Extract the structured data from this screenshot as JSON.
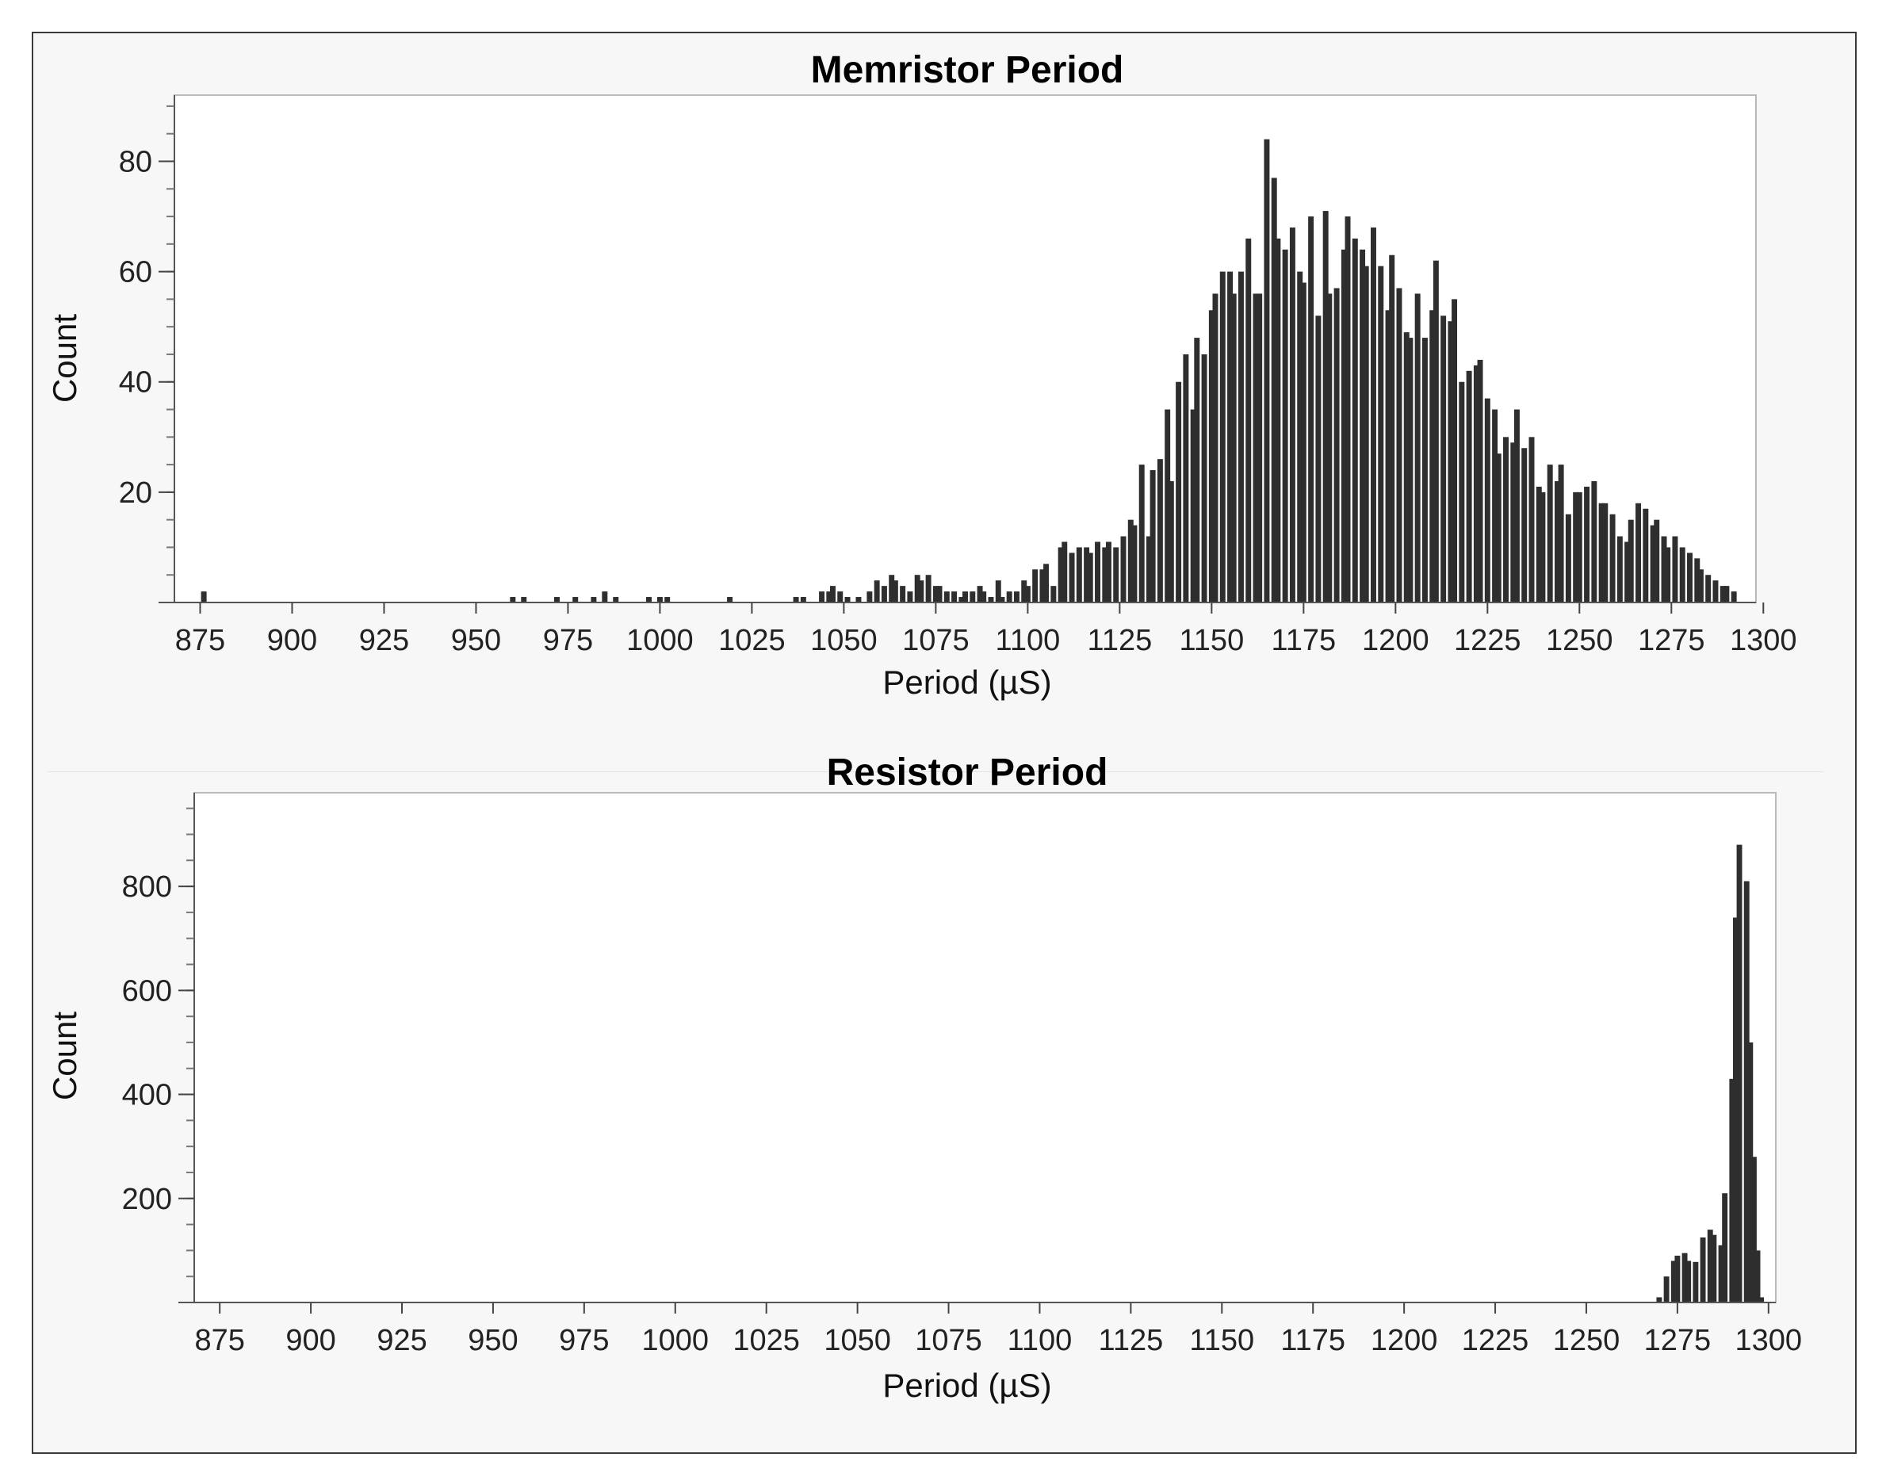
{
  "chart_data": [
    {
      "type": "bar",
      "title": "Memristor Period",
      "xlabel": "Period (µS)",
      "ylabel": "Count",
      "xlim": [
        868,
        1298
      ],
      "ylim": [
        0,
        92
      ],
      "xticks": [
        875,
        900,
        925,
        950,
        975,
        1000,
        1025,
        1050,
        1075,
        1100,
        1125,
        1150,
        1175,
        1200,
        1225,
        1250,
        1275,
        1300
      ],
      "yticks": [
        20,
        40,
        60,
        80
      ],
      "y_minor_step": 5,
      "bin_width": 1.5,
      "grid": false,
      "legend": "none",
      "bar_color": "#2e2e2e",
      "bins": [
        [
          876,
          2
        ],
        [
          960,
          1
        ],
        [
          963,
          1
        ],
        [
          972,
          1
        ],
        [
          977,
          1
        ],
        [
          982,
          1
        ],
        [
          985,
          2
        ],
        [
          988,
          1
        ],
        [
          997,
          1
        ],
        [
          1000,
          1
        ],
        [
          1002,
          1
        ],
        [
          1019,
          1
        ],
        [
          1037,
          1
        ],
        [
          1039,
          1
        ],
        [
          1044,
          2
        ],
        [
          1046,
          2
        ],
        [
          1047,
          3
        ],
        [
          1049,
          2
        ],
        [
          1051,
          1
        ],
        [
          1054,
          1
        ],
        [
          1057,
          2
        ],
        [
          1059,
          4
        ],
        [
          1061,
          3
        ],
        [
          1063,
          5
        ],
        [
          1064,
          4
        ],
        [
          1066,
          3
        ],
        [
          1068,
          2
        ],
        [
          1070,
          5
        ],
        [
          1071,
          4
        ],
        [
          1073,
          5
        ],
        [
          1075,
          3
        ],
        [
          1076,
          3
        ],
        [
          1078,
          2
        ],
        [
          1080,
          2
        ],
        [
          1082,
          1
        ],
        [
          1083,
          2
        ],
        [
          1085,
          2
        ],
        [
          1087,
          3
        ],
        [
          1088,
          2
        ],
        [
          1090,
          1
        ],
        [
          1092,
          4
        ],
        [
          1093,
          1
        ],
        [
          1095,
          2
        ],
        [
          1097,
          2
        ],
        [
          1099,
          4
        ],
        [
          1100,
          3
        ],
        [
          1102,
          6
        ],
        [
          1104,
          6
        ],
        [
          1105,
          7
        ],
        [
          1107,
          3
        ],
        [
          1109,
          10
        ],
        [
          1110,
          11
        ],
        [
          1112,
          9
        ],
        [
          1114,
          10
        ],
        [
          1116,
          10
        ],
        [
          1117,
          9
        ],
        [
          1119,
          11
        ],
        [
          1121,
          10
        ],
        [
          1122,
          11
        ],
        [
          1124,
          10
        ],
        [
          1126,
          12
        ],
        [
          1128,
          15
        ],
        [
          1129,
          14
        ],
        [
          1131,
          25
        ],
        [
          1133,
          12
        ],
        [
          1134,
          24
        ],
        [
          1136,
          26
        ],
        [
          1138,
          35
        ],
        [
          1139,
          22
        ],
        [
          1141,
          40
        ],
        [
          1143,
          45
        ],
        [
          1145,
          35
        ],
        [
          1146,
          48
        ],
        [
          1148,
          45
        ],
        [
          1150,
          53
        ],
        [
          1151,
          56
        ],
        [
          1153,
          60
        ],
        [
          1155,
          60
        ],
        [
          1156,
          56
        ],
        [
          1158,
          60
        ],
        [
          1160,
          66
        ],
        [
          1162,
          56
        ],
        [
          1163,
          56
        ],
        [
          1165,
          84
        ],
        [
          1167,
          77
        ],
        [
          1168,
          66
        ],
        [
          1170,
          64
        ],
        [
          1172,
          68
        ],
        [
          1174,
          60
        ],
        [
          1175,
          58
        ],
        [
          1177,
          70
        ],
        [
          1179,
          52
        ],
        [
          1181,
          71
        ],
        [
          1182,
          56
        ],
        [
          1184,
          57
        ],
        [
          1186,
          64
        ],
        [
          1187,
          70
        ],
        [
          1189,
          66
        ],
        [
          1191,
          64
        ],
        [
          1192,
          61
        ],
        [
          1194,
          68
        ],
        [
          1196,
          61
        ],
        [
          1198,
          53
        ],
        [
          1199,
          63
        ],
        [
          1201,
          57
        ],
        [
          1203,
          49
        ],
        [
          1204,
          48
        ],
        [
          1206,
          56
        ],
        [
          1208,
          48
        ],
        [
          1210,
          53
        ],
        [
          1211,
          62
        ],
        [
          1213,
          52
        ],
        [
          1215,
          51
        ],
        [
          1216,
          55
        ],
        [
          1218,
          40
        ],
        [
          1220,
          42
        ],
        [
          1222,
          43
        ],
        [
          1223,
          44
        ],
        [
          1225,
          37
        ],
        [
          1227,
          35
        ],
        [
          1228,
          27
        ],
        [
          1230,
          30
        ],
        [
          1232,
          29
        ],
        [
          1233,
          35
        ],
        [
          1235,
          28
        ],
        [
          1237,
          30
        ],
        [
          1239,
          21
        ],
        [
          1240,
          20
        ],
        [
          1242,
          25
        ],
        [
          1244,
          22
        ],
        [
          1245,
          25
        ],
        [
          1247,
          16
        ],
        [
          1249,
          20
        ],
        [
          1250,
          20
        ],
        [
          1252,
          21
        ],
        [
          1254,
          22
        ],
        [
          1256,
          18
        ],
        [
          1257,
          18
        ],
        [
          1259,
          16
        ],
        [
          1261,
          12
        ],
        [
          1263,
          11
        ],
        [
          1264,
          15
        ],
        [
          1266,
          18
        ],
        [
          1268,
          17
        ],
        [
          1270,
          14
        ],
        [
          1271,
          15
        ],
        [
          1273,
          12
        ],
        [
          1274,
          10
        ],
        [
          1276,
          12
        ],
        [
          1278,
          10
        ],
        [
          1280,
          9
        ],
        [
          1282,
          8
        ],
        [
          1283,
          6
        ],
        [
          1285,
          5
        ],
        [
          1287,
          4
        ],
        [
          1289,
          3
        ],
        [
          1290,
          3
        ],
        [
          1292,
          2
        ]
      ]
    },
    {
      "type": "bar",
      "title": "Resistor Period",
      "xlabel": "Period (µS)",
      "ylabel": "Count",
      "xlim": [
        868,
        1302
      ],
      "ylim": [
        0,
        980
      ],
      "xticks": [
        875,
        900,
        925,
        950,
        975,
        1000,
        1025,
        1050,
        1075,
        1100,
        1125,
        1150,
        1175,
        1200,
        1225,
        1250,
        1275,
        1300
      ],
      "yticks": [
        200,
        400,
        600,
        800
      ],
      "y_minor_step": 50,
      "bin_width": 1.5,
      "grid": false,
      "legend": "none",
      "bar_color": "#2e2e2e",
      "bins": [
        [
          1270,
          10
        ],
        [
          1272,
          50
        ],
        [
          1274,
          80
        ],
        [
          1275,
          90
        ],
        [
          1277,
          95
        ],
        [
          1278,
          80
        ],
        [
          1280,
          78
        ],
        [
          1282,
          125
        ],
        [
          1284,
          140
        ],
        [
          1285,
          130
        ],
        [
          1287,
          110
        ],
        [
          1288,
          210
        ],
        [
          1290,
          430
        ],
        [
          1291,
          740
        ],
        [
          1292,
          880
        ],
        [
          1294,
          810
        ],
        [
          1295,
          500
        ],
        [
          1296,
          280
        ],
        [
          1297,
          100
        ],
        [
          1298,
          10
        ]
      ]
    }
  ]
}
